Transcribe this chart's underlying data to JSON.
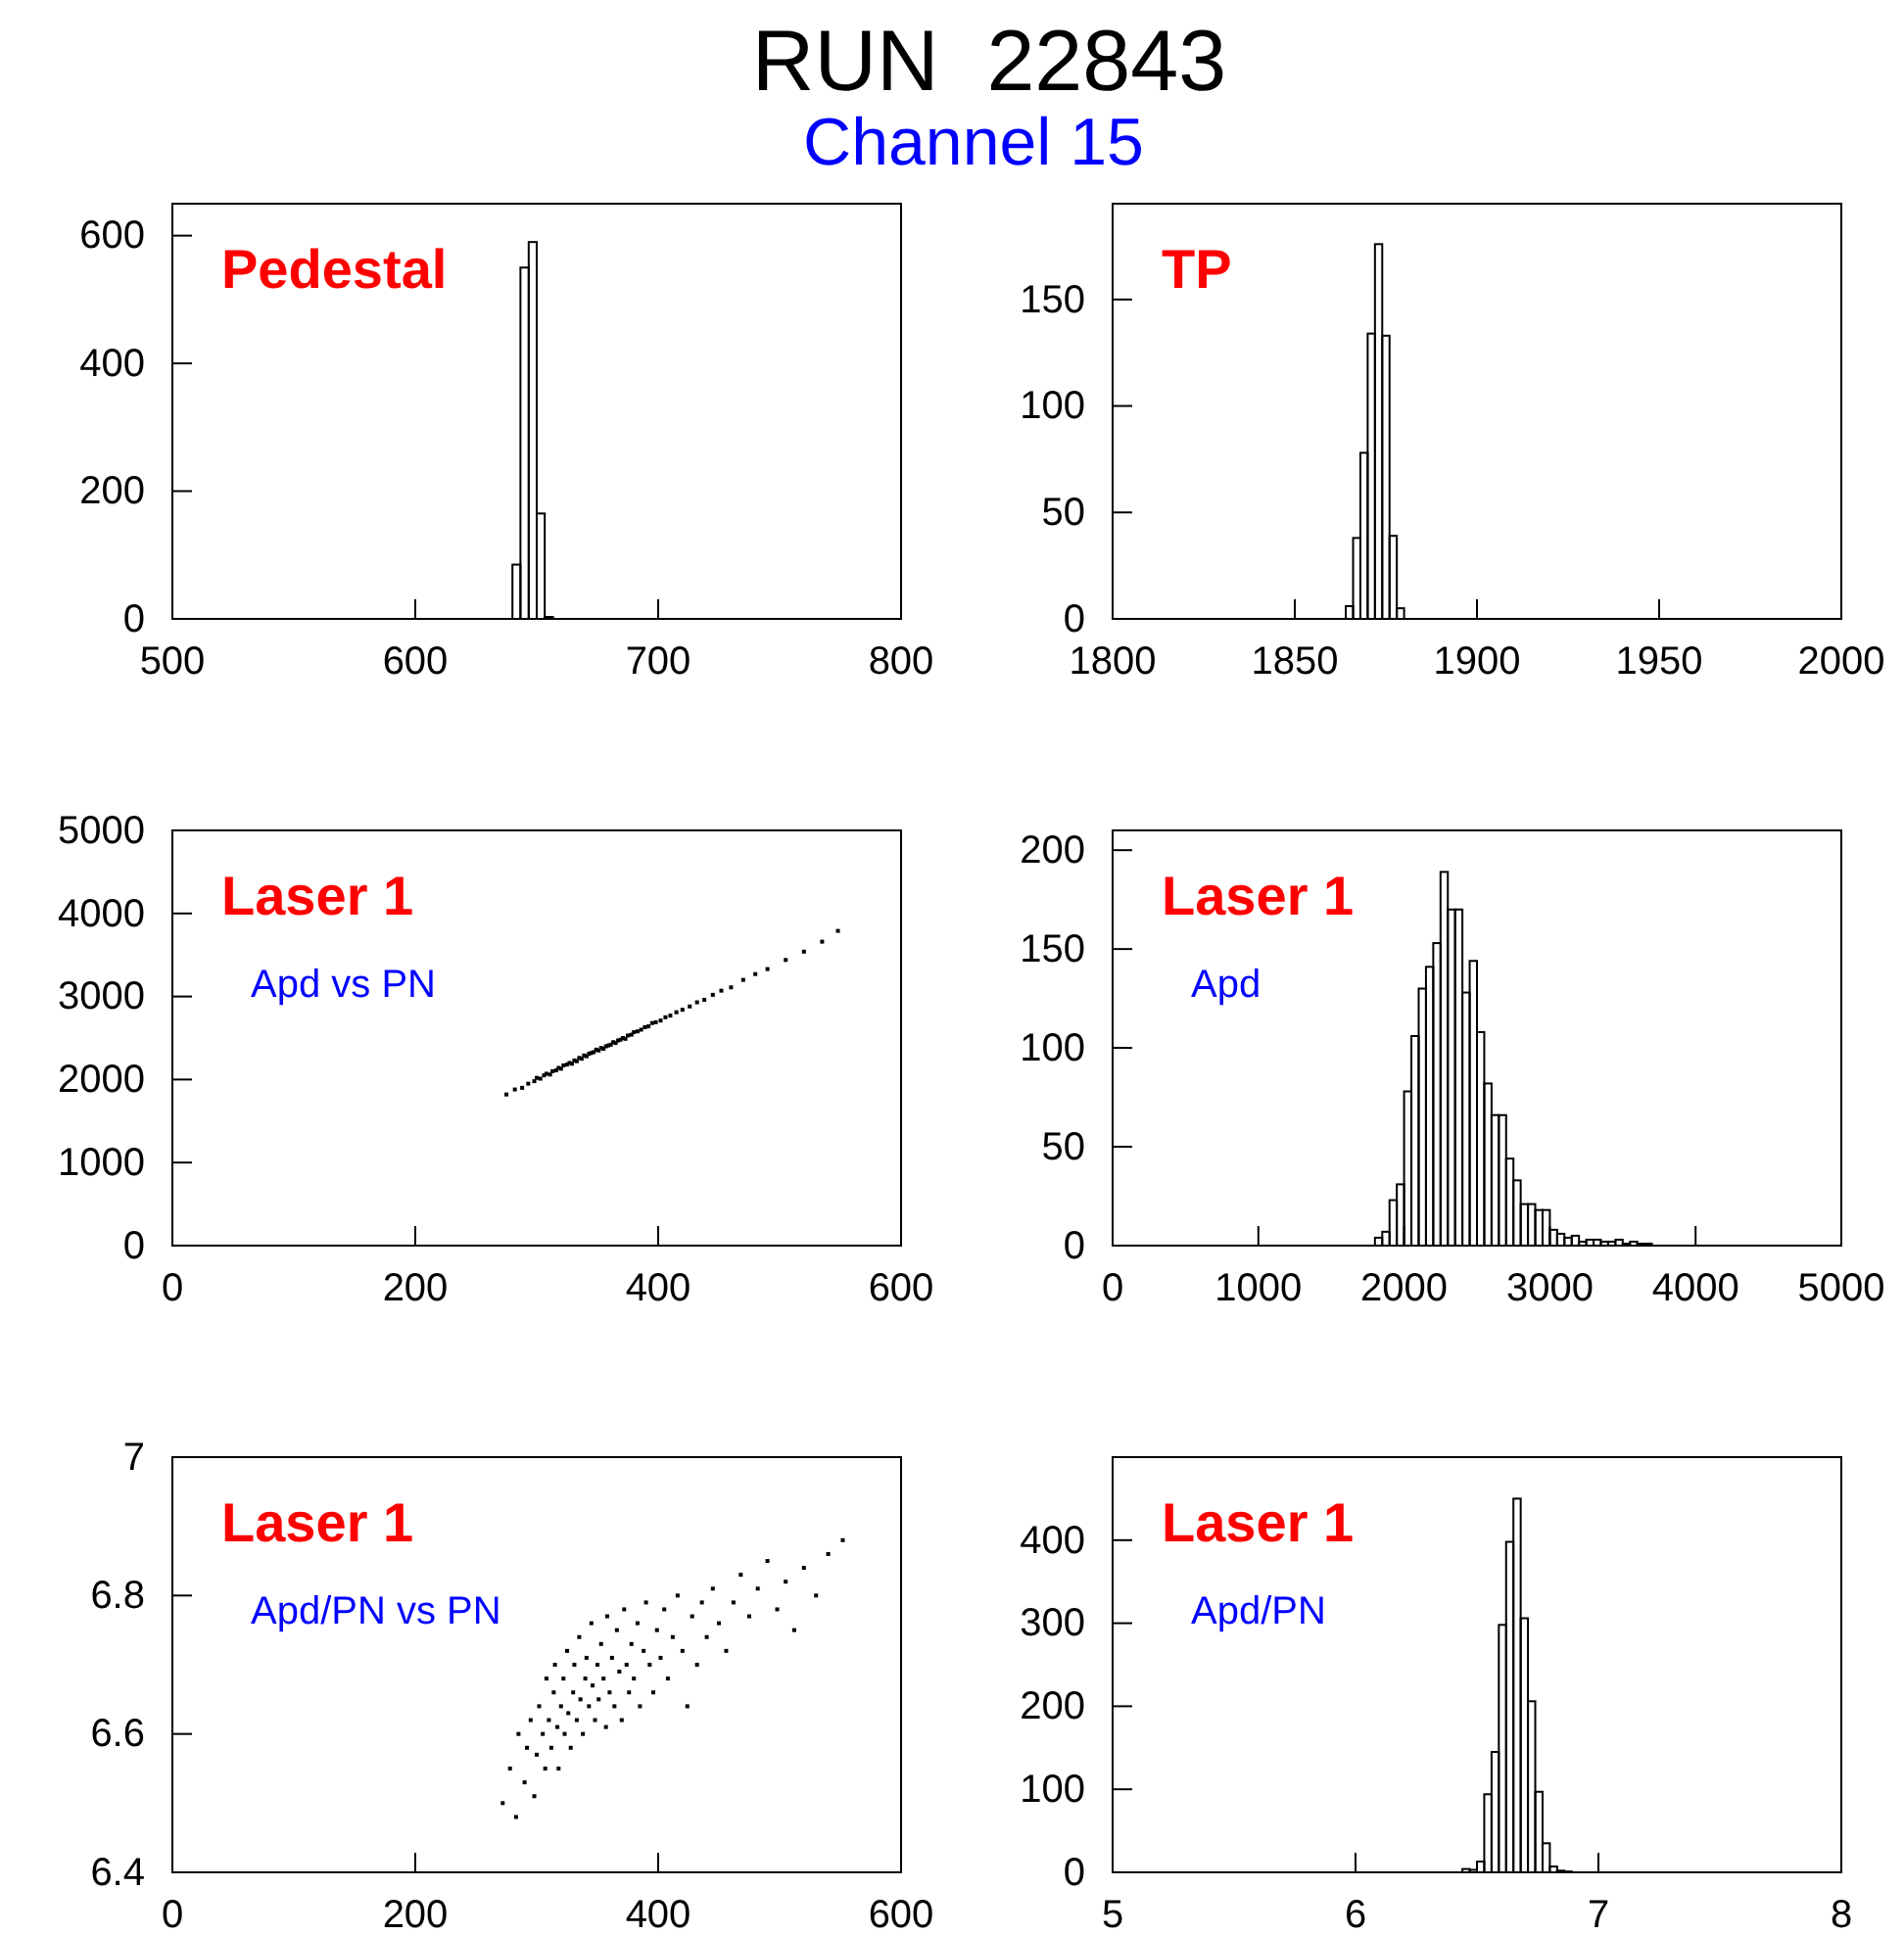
{
  "chart_data": [
    {
      "type": "histogram",
      "title": "RUN  22843",
      "subtitle": "Channel 15",
      "annotations": [
        "Pedestal"
      ],
      "color": "#000000",
      "bins": [
        640,
        643.3,
        646.7,
        650,
        653.3,
        656.7
      ],
      "values": [
        85,
        550,
        590,
        165,
        3
      ],
      "xlim": [
        500,
        800
      ],
      "xticks": [
        500,
        600,
        700,
        800
      ],
      "ylim": [
        0,
        650
      ],
      "yticks": [
        0,
        200,
        400,
        600
      ]
    },
    {
      "type": "histogram",
      "annotations": [
        "TP"
      ],
      "color": "#000000",
      "bins": [
        1864,
        1866,
        1868,
        1870,
        1872,
        1874,
        1876,
        1878,
        1880
      ],
      "values": [
        6,
        38,
        78,
        134,
        176,
        133,
        39,
        5
      ],
      "xlim": [
        1800,
        2000
      ],
      "xticks": [
        1800,
        1850,
        1900,
        1950,
        2000
      ],
      "ylim": [
        0,
        195
      ],
      "yticks": [
        0,
        50,
        100,
        150
      ]
    },
    {
      "type": "scatter",
      "annotations": [
        "Laser 1",
        "Apd vs PN"
      ],
      "color": "#000000",
      "x": [
        275,
        282,
        288,
        293,
        298,
        300,
        303,
        306,
        308,
        311,
        313,
        316,
        318,
        320,
        322,
        325,
        327,
        329,
        331,
        333,
        335,
        337,
        339,
        341,
        343,
        345,
        347,
        349,
        351,
        353,
        355,
        357,
        359,
        361,
        363,
        365,
        367,
        369,
        371,
        373,
        375,
        378,
        380,
        383,
        386,
        389,
        392,
        395,
        398,
        402,
        406,
        410,
        415,
        420,
        426,
        432,
        438,
        445,
        452,
        460,
        470,
        480,
        490,
        505,
        520,
        535,
        548
      ],
      "values": [
        1820,
        1880,
        1900,
        1950,
        1980,
        2020,
        2010,
        2050,
        2070,
        2060,
        2100,
        2110,
        2140,
        2130,
        2170,
        2180,
        2200,
        2190,
        2230,
        2220,
        2260,
        2250,
        2290,
        2280,
        2310,
        2320,
        2330,
        2360,
        2350,
        2380,
        2370,
        2400,
        2410,
        2420,
        2450,
        2440,
        2470,
        2480,
        2500,
        2490,
        2530,
        2540,
        2570,
        2580,
        2600,
        2630,
        2640,
        2680,
        2690,
        2710,
        2750,
        2770,
        2810,
        2840,
        2880,
        2930,
        2960,
        3020,
        3070,
        3110,
        3200,
        3270,
        3330,
        3440,
        3540,
        3660,
        3790
      ],
      "xlim": [
        0,
        600
      ],
      "xticks": [
        0,
        200,
        400,
        600
      ],
      "ylim": [
        0,
        5000
      ],
      "yticks": [
        0,
        1000,
        2000,
        3000,
        4000,
        5000
      ]
    },
    {
      "type": "histogram",
      "annotations": [
        "Laser 1",
        "Apd"
      ],
      "color": "#000000",
      "bins": [
        1800,
        1850,
        1900,
        1950,
        2000,
        2050,
        2100,
        2150,
        2200,
        2250,
        2300,
        2350,
        2400,
        2450,
        2500,
        2550,
        2600,
        2650,
        2700,
        2750,
        2800,
        2850,
        2900,
        2950,
        3000,
        3050,
        3100,
        3150,
        3200,
        3250,
        3300,
        3350,
        3400,
        3450,
        3500,
        3550,
        3600,
        3650,
        3700
      ],
      "values": [
        4,
        7,
        23,
        31,
        78,
        106,
        130,
        141,
        153,
        189,
        170,
        170,
        128,
        144,
        108,
        82,
        66,
        66,
        44,
        33,
        21,
        21,
        18,
        18,
        8,
        6,
        4,
        5,
        2,
        3,
        3,
        2,
        2,
        3,
        1,
        2,
        1,
        1
      ],
      "xlim": [
        0,
        5000
      ],
      "xticks": [
        0,
        1000,
        2000,
        3000,
        4000,
        5000
      ],
      "ylim": [
        0,
        210
      ],
      "yticks": [
        0,
        50,
        100,
        150,
        200
      ]
    },
    {
      "type": "scatter",
      "annotations": [
        "Laser 1",
        "Apd/PN vs PN"
      ],
      "color": "#000000",
      "x": [
        272,
        278,
        283,
        285,
        290,
        292,
        295,
        298,
        300,
        302,
        305,
        307,
        308,
        310,
        312,
        314,
        315,
        317,
        318,
        320,
        322,
        323,
        325,
        326,
        328,
        330,
        331,
        333,
        335,
        336,
        338,
        340,
        341,
        343,
        345,
        346,
        348,
        350,
        351,
        353,
        355,
        357,
        358,
        360,
        362,
        364,
        366,
        368,
        370,
        372,
        374,
        376,
        378,
        380,
        383,
        385,
        388,
        390,
        393,
        396,
        399,
        402,
        405,
        408,
        412,
        416,
        420,
        424,
        428,
        432,
        436,
        440,
        445,
        450,
        456,
        462,
        468,
        475,
        482,
        490,
        498,
        505,
        512,
        520,
        530,
        540,
        552
      ],
      "values": [
        6.5,
        6.55,
        6.48,
        6.6,
        6.53,
        6.58,
        6.62,
        6.51,
        6.57,
        6.64,
        6.6,
        6.55,
        6.68,
        6.62,
        6.58,
        6.66,
        6.7,
        6.61,
        6.55,
        6.64,
        6.68,
        6.6,
        6.72,
        6.63,
        6.58,
        6.66,
        6.7,
        6.62,
        6.74,
        6.65,
        6.6,
        6.68,
        6.71,
        6.64,
        6.76,
        6.67,
        6.62,
        6.7,
        6.65,
        6.73,
        6.68,
        6.61,
        6.77,
        6.66,
        6.71,
        6.64,
        6.75,
        6.69,
        6.62,
        6.78,
        6.7,
        6.66,
        6.73,
        6.68,
        6.76,
        6.64,
        6.72,
        6.79,
        6.7,
        6.66,
        6.75,
        6.71,
        6.78,
        6.68,
        6.74,
        6.8,
        6.72,
        6.64,
        6.77,
        6.7,
        6.79,
        6.74,
        6.81,
        6.76,
        6.72,
        6.79,
        6.83,
        6.77,
        6.81,
        6.85,
        6.78,
        6.82,
        6.75,
        6.84,
        6.8,
        6.86,
        6.88
      ],
      "xlim": [
        0,
        600
      ],
      "xticks": [
        0,
        200,
        400,
        600
      ],
      "ylim": [
        6.4,
        7
      ],
      "yticks": [
        6.4,
        6.6,
        6.8,
        {
          "value": 7,
          "label": "7"
        }
      ]
    },
    {
      "type": "histogram",
      "annotations": [
        "Laser 1",
        "Apd/PN"
      ],
      "color": "#000000",
      "bins": [
        6.44,
        6.47,
        6.5,
        6.53,
        6.56,
        6.59,
        6.62,
        6.65,
        6.68,
        6.71,
        6.74,
        6.77,
        6.8,
        6.83,
        6.86,
        6.89
      ],
      "values": [
        4,
        3,
        13,
        94,
        145,
        298,
        398,
        450,
        306,
        206,
        97,
        35,
        7,
        2,
        1
      ],
      "xlim": [
        5,
        8
      ],
      "xticks": [
        5,
        6,
        7,
        8
      ],
      "ylim": [
        0,
        500
      ],
      "yticks": [
        0,
        100,
        200,
        300,
        400
      ]
    }
  ]
}
